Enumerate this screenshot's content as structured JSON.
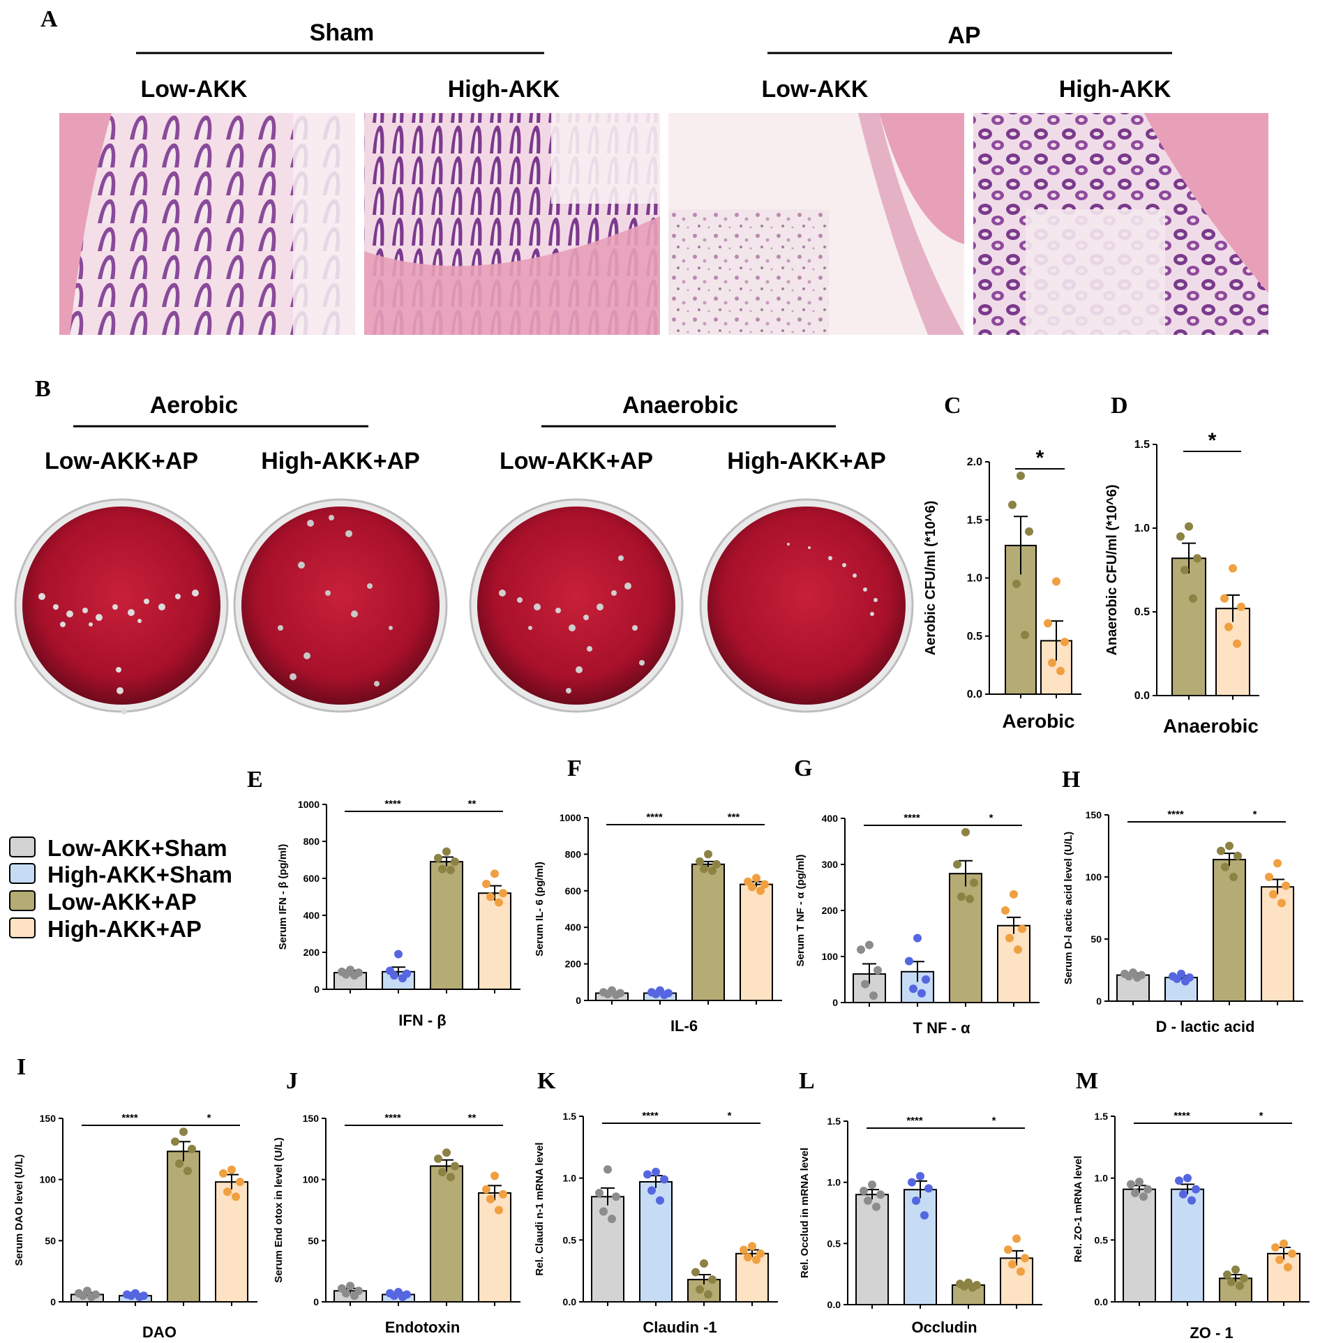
{
  "panel_a": {
    "letter": "A",
    "groups": [
      {
        "label": "Sham",
        "subs": [
          "Low-AKK",
          "High-AKK"
        ]
      },
      {
        "label": "AP",
        "subs": [
          "Low-AKK",
          "High-AKK"
        ]
      }
    ]
  },
  "panel_b": {
    "letter": "B",
    "groups": [
      {
        "label": "Aerobic",
        "subs": [
          "Low-AKK+AP",
          "High-AKK+AP"
        ]
      },
      {
        "label": "Anaerobic",
        "subs": [
          "Low-AKK+AP",
          "High-AKK+AP"
        ]
      }
    ]
  },
  "legend": [
    {
      "label": "Low-AKK+Sham",
      "color": "#d3d3d3"
    },
    {
      "label": "High-AKK+Sham",
      "color": "#c6dcf5"
    },
    {
      "label": "Low-AKK+AP",
      "color": "#b5ab74"
    },
    {
      "label": "High-AKK+AP",
      "color": "#fde2c3"
    }
  ],
  "colors": {
    "dot_low_sham": "#8c8c8c",
    "dot_high_sham": "#5566e0",
    "dot_low_ap": "#8c8244",
    "dot_high_ap": "#f0a040",
    "tissue_pink": "#e8a0b8",
    "tissue_purple": "#7a3a8c",
    "agar": "#a8102a"
  },
  "chart_data": [
    {
      "id": "C",
      "type": "bar",
      "xlabel": "Aerobic",
      "ylabel": "Aerobic CFU/ml (*10^6)",
      "ylim": [
        0,
        2.0
      ],
      "yticks": [
        "0.0",
        "0.5",
        "1.0",
        "1.5",
        "2.0"
      ],
      "categories": [
        "Low-AKK+AP",
        "High-AKK+AP"
      ],
      "values": [
        1.28,
        0.46
      ],
      "errors": [
        0.25,
        0.17
      ],
      "points": [
        [
          1.88,
          1.63,
          1.4,
          0.95,
          0.51
        ],
        [
          0.97,
          0.61,
          0.45,
          0.27,
          0.2
        ]
      ],
      "sig": [
        {
          "from": 0,
          "to": 1,
          "label": "*"
        }
      ]
    },
    {
      "id": "D",
      "type": "bar",
      "xlabel": "Anaerobic",
      "ylabel": "Anaerobic CFU/ml (*10^6)",
      "ylim": [
        0,
        1.5
      ],
      "yticks": [
        "0.0",
        "0.5",
        "1.0",
        "1.5"
      ],
      "categories": [
        "Low-AKK+AP",
        "High-AKK+AP"
      ],
      "values": [
        0.82,
        0.52
      ],
      "errors": [
        0.09,
        0.08
      ],
      "points": [
        [
          1.01,
          0.95,
          0.82,
          0.75,
          0.58
        ],
        [
          0.76,
          0.58,
          0.53,
          0.41,
          0.31
        ]
      ],
      "sig": [
        {
          "from": 0,
          "to": 1,
          "label": "*"
        }
      ]
    },
    {
      "id": "E",
      "type": "bar",
      "xlabel": "IFN - β",
      "ylabel": "Serum IFN - β (pg/ml)",
      "ylim": [
        0,
        1000
      ],
      "yticks": [
        "0",
        "200",
        "400",
        "600",
        "800",
        "1000"
      ],
      "categories": [
        "Low-AKK+Sham",
        "High-AKK+Sham",
        "Low-AKK+AP",
        "High-AKK+AP"
      ],
      "values": [
        90,
        95,
        690,
        520
      ],
      "errors": [
        12,
        25,
        25,
        40
      ],
      "points": [
        [
          105,
          95,
          90,
          80,
          75
        ],
        [
          190,
          100,
          85,
          75,
          60
        ],
        [
          745,
          710,
          690,
          650,
          645
        ],
        [
          625,
          570,
          520,
          500,
          470
        ]
      ],
      "sig": [
        {
          "from": 0,
          "to": 2,
          "label": "****"
        },
        {
          "from": 2,
          "to": 3,
          "label": "**"
        }
      ]
    },
    {
      "id": "F",
      "type": "bar",
      "xlabel": "IL-6",
      "ylabel": "Serum IL- 6 (pg/ml)",
      "ylim": [
        0,
        1000
      ],
      "yticks": [
        "0",
        "200",
        "400",
        "600",
        "800",
        "1000"
      ],
      "categories": [
        "Low-AKK+Sham",
        "High-AKK+Sham",
        "Low-AKK+AP",
        "High-AKK+AP"
      ],
      "values": [
        40,
        40,
        745,
        635
      ],
      "errors": [
        8,
        8,
        15,
        15
      ],
      "points": [
        [
          55,
          45,
          40,
          35,
          30
        ],
        [
          55,
          45,
          40,
          35,
          30
        ],
        [
          800,
          760,
          745,
          720,
          710
        ],
        [
          670,
          650,
          635,
          620,
          600
        ]
      ],
      "sig": [
        {
          "from": 0,
          "to": 2,
          "label": "****"
        },
        {
          "from": 2,
          "to": 3,
          "label": "***"
        }
      ]
    },
    {
      "id": "G",
      "type": "bar",
      "xlabel": "T NF - α",
      "ylabel": "Serum T NF - α (pg/ml)",
      "ylim": [
        0,
        400
      ],
      "yticks": [
        "0",
        "100",
        "200",
        "300",
        "400"
      ],
      "categories": [
        "Low-AKK+Sham",
        "High-AKK+Sham",
        "Low-AKK+AP",
        "High-AKK+AP"
      ],
      "values": [
        62,
        67,
        280,
        167
      ],
      "errors": [
        22,
        22,
        28,
        18
      ],
      "points": [
        [
          125,
          115,
          70,
          40,
          15
        ],
        [
          140,
          90,
          50,
          30,
          20
        ],
        [
          370,
          300,
          260,
          230,
          225
        ],
        [
          235,
          200,
          160,
          140,
          115
        ]
      ],
      "sig": [
        {
          "from": 0,
          "to": 2,
          "label": "****"
        },
        {
          "from": 2,
          "to": 3,
          "label": "*"
        }
      ]
    },
    {
      "id": "H",
      "type": "bar",
      "xlabel": "D - lactic acid",
      "ylabel": "Serum D-l actic acid level (U/L)",
      "ylim": [
        0,
        150
      ],
      "yticks": [
        "0",
        "50",
        "100",
        "150"
      ],
      "categories": [
        "Low-AKK+Sham",
        "High-AKK+Sham",
        "Low-AKK+AP",
        "High-AKK+AP"
      ],
      "values": [
        21,
        19,
        114,
        92
      ],
      "errors": [
        1.5,
        1.5,
        5,
        6
      ],
      "points": [
        [
          23,
          22,
          21,
          20,
          19
        ],
        [
          22,
          20,
          19,
          18,
          16
        ],
        [
          125,
          121,
          117,
          108,
          100
        ],
        [
          111,
          100,
          93,
          86,
          79
        ]
      ],
      "sig": [
        {
          "from": 0,
          "to": 2,
          "label": "****"
        },
        {
          "from": 2,
          "to": 3,
          "label": "*"
        }
      ]
    },
    {
      "id": "I",
      "type": "bar",
      "xlabel": "DAO",
      "ylabel": "Serum DAO level (U/L)",
      "ylim": [
        0,
        150
      ],
      "yticks": [
        "0",
        "50",
        "100",
        "150"
      ],
      "categories": [
        "Low-AKK+Sham",
        "High-AKK+Sham",
        "Low-AKK+AP",
        "High-AKK+AP"
      ],
      "values": [
        6,
        5,
        123,
        98
      ],
      "errors": [
        1.5,
        1,
        8,
        6
      ],
      "points": [
        [
          9,
          7,
          6,
          5,
          4
        ],
        [
          7,
          6,
          5,
          5,
          4
        ],
        [
          139,
          131,
          125,
          113,
          107
        ],
        [
          108,
          105,
          98,
          90,
          86
        ]
      ],
      "sig": [
        {
          "from": 0,
          "to": 2,
          "label": "****"
        },
        {
          "from": 2,
          "to": 3,
          "label": "*"
        }
      ]
    },
    {
      "id": "J",
      "type": "bar",
      "xlabel": "Endotoxin",
      "ylabel": "Serum End otox in level (U/L)",
      "ylim": [
        0,
        150
      ],
      "yticks": [
        "0",
        "50",
        "100",
        "150"
      ],
      "categories": [
        "Low-AKK+Sham",
        "High-AKK+Sham",
        "Low-AKK+AP",
        "High-AKK+AP"
      ],
      "values": [
        9,
        6,
        111,
        89
      ],
      "errors": [
        2,
        1.5,
        5,
        6
      ],
      "points": [
        [
          13,
          11,
          9,
          7,
          5
        ],
        [
          8,
          7,
          6,
          5,
          4
        ],
        [
          122,
          117,
          111,
          106,
          102
        ],
        [
          103,
          92,
          88,
          84,
          75
        ]
      ],
      "sig": [
        {
          "from": 0,
          "to": 2,
          "label": "****"
        },
        {
          "from": 2,
          "to": 3,
          "label": "**"
        }
      ]
    },
    {
      "id": "K",
      "type": "bar",
      "xlabel": "Claudin -1",
      "ylabel": "Rel. Claudi n-1 mRNA level",
      "ylim": [
        0,
        1.5
      ],
      "yticks": [
        "0.0",
        "0.5",
        "1.0",
        "1.5"
      ],
      "categories": [
        "Low-AKK+Sham",
        "High-AKK+Sham",
        "Low-AKK+AP",
        "High-AKK+AP"
      ],
      "values": [
        0.85,
        0.97,
        0.18,
        0.39
      ],
      "errors": [
        0.07,
        0.05,
        0.04,
        0.03
      ],
      "points": [
        [
          1.07,
          0.88,
          0.85,
          0.73,
          0.67
        ],
        [
          1.05,
          1.03,
          0.99,
          0.9,
          0.82
        ],
        [
          0.31,
          0.24,
          0.18,
          0.1,
          0.06
        ],
        [
          0.45,
          0.42,
          0.39,
          0.36,
          0.34
        ]
      ],
      "sig": [
        {
          "from": 0,
          "to": 2,
          "label": "****"
        },
        {
          "from": 2,
          "to": 3,
          "label": "*"
        }
      ]
    },
    {
      "id": "L",
      "type": "bar",
      "xlabel": "Occludin",
      "ylabel": "Rel. Occlud in mRNA level",
      "ylim": [
        0,
        1.5
      ],
      "yticks": [
        "0.0",
        "0.5",
        "1.0",
        "1.5"
      ],
      "categories": [
        "Low-AKK+Sham",
        "High-AKK+Sham",
        "Low-AKK+AP",
        "High-AKK+AP"
      ],
      "values": [
        0.9,
        0.94,
        0.16,
        0.38
      ],
      "errors": [
        0.04,
        0.07,
        0.01,
        0.06
      ],
      "points": [
        [
          0.98,
          0.93,
          0.9,
          0.85,
          0.8
        ],
        [
          1.05,
          1.0,
          0.95,
          0.85,
          0.73
        ],
        [
          0.18,
          0.17,
          0.16,
          0.15,
          0.14
        ],
        [
          0.54,
          0.45,
          0.38,
          0.33,
          0.27
        ]
      ],
      "sig": [
        {
          "from": 0,
          "to": 2,
          "label": "****"
        },
        {
          "from": 2,
          "to": 3,
          "label": "*"
        }
      ]
    },
    {
      "id": "M",
      "type": "bar",
      "xlabel": "ZO - 1",
      "ylabel": "Rel. ZO-1 mRNA level",
      "ylim": [
        0,
        1.5
      ],
      "yticks": [
        "0.0",
        "0.5",
        "1.0",
        "1.5"
      ],
      "categories": [
        "Low-AKK+Sham",
        "High-AKK+Sham",
        "Low-AKK+AP",
        "High-AKK+AP"
      ],
      "values": [
        0.91,
        0.91,
        0.19,
        0.39
      ],
      "errors": [
        0.03,
        0.04,
        0.03,
        0.05
      ],
      "points": [
        [
          0.97,
          0.95,
          0.91,
          0.88,
          0.85
        ],
        [
          1.0,
          0.98,
          0.91,
          0.87,
          0.82
        ],
        [
          0.26,
          0.22,
          0.19,
          0.16,
          0.13
        ],
        [
          0.47,
          0.44,
          0.39,
          0.34,
          0.28
        ]
      ],
      "sig": [
        {
          "from": 0,
          "to": 2,
          "label": "****"
        },
        {
          "from": 2,
          "to": 3,
          "label": "*"
        }
      ]
    }
  ]
}
